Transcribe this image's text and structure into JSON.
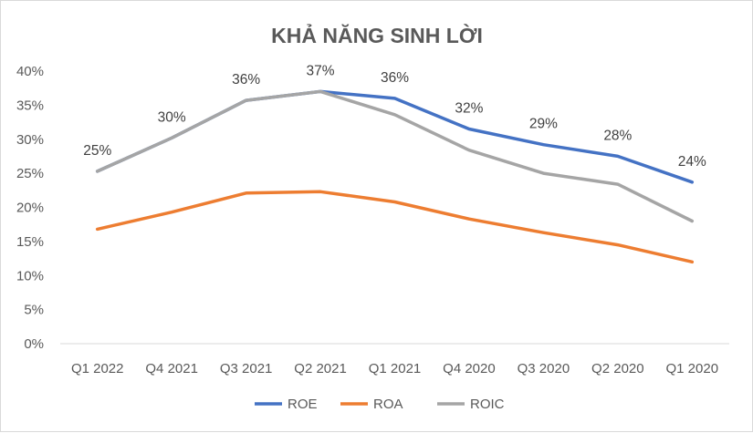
{
  "chart_data": {
    "type": "line",
    "title": "KHẢ NĂNG SINH LỜI",
    "xlabel": "",
    "ylabel": "",
    "categories": [
      "Q1 2022",
      "Q4 2021",
      "Q3 2021",
      "Q2 2021",
      "Q1 2021",
      "Q4 2020",
      "Q3 2020",
      "Q2 2020",
      "Q1 2020"
    ],
    "y_ticks": [
      "40%",
      "35%",
      "30%",
      "25%",
      "20%",
      "15%",
      "10%",
      "5%",
      "0%"
    ],
    "ylim": [
      0,
      0.4
    ],
    "y_format": "percent",
    "grid": false,
    "legend_position": "bottom",
    "series": [
      {
        "name": "ROE",
        "color": "#4472C4",
        "values": [
          0.253,
          0.302,
          0.357,
          0.37,
          0.36,
          0.315,
          0.292,
          0.275,
          0.237
        ]
      },
      {
        "name": "ROA",
        "color": "#ED7D31",
        "values": [
          0.168,
          0.193,
          0.221,
          0.223,
          0.208,
          0.183,
          0.163,
          0.145,
          0.12
        ]
      },
      {
        "name": "ROIC",
        "color": "#A5A5A5",
        "values": [
          0.253,
          0.302,
          0.357,
          0.37,
          0.336,
          0.284,
          0.25,
          0.234,
          0.18
        ]
      }
    ],
    "data_labels": {
      "series": "ROE",
      "values": [
        "25%",
        "30%",
        "36%",
        "37%",
        "36%",
        "32%",
        "29%",
        "28%",
        "24%"
      ]
    }
  }
}
